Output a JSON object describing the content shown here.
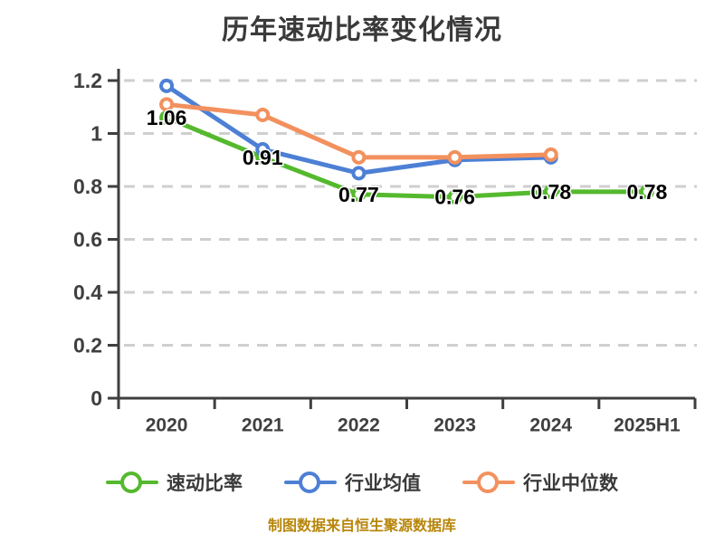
{
  "title": "历年速动比率变化情况",
  "footer": "制图数据来自恒生聚源数据库",
  "colors": {
    "title": "#3a3a3a",
    "axis": "#3f3f3f",
    "grid": "#cfcfcf",
    "point_label": "#000000",
    "footer": "#b8860b",
    "background": "#ffffff",
    "series_quick_ratio": "#55b92e",
    "series_industry_avg": "#4d80d5",
    "series_industry_median": "#f2915e"
  },
  "chart_data": {
    "type": "line",
    "title": "历年速动比率变化情况",
    "xlabel": "",
    "ylabel": "",
    "categories": [
      "2020",
      "2021",
      "2022",
      "2023",
      "2024",
      "2025H1"
    ],
    "series": [
      {
        "name": "速动比率",
        "color": "#55b92e",
        "values": [
          1.06,
          0.91,
          0.77,
          0.76,
          0.78,
          0.78
        ],
        "labels": [
          "1.06",
          "0.91",
          "0.77",
          "0.76",
          "0.78",
          "0.78"
        ]
      },
      {
        "name": "行业均值",
        "color": "#4d80d5",
        "values": [
          1.18,
          0.94,
          0.85,
          0.9,
          0.91,
          null
        ],
        "labels": null
      },
      {
        "name": "行业中位数",
        "color": "#f2915e",
        "values": [
          1.11,
          1.07,
          0.91,
          0.91,
          0.92,
          null
        ],
        "labels": null
      }
    ],
    "ylim": [
      0,
      1.2
    ],
    "yticks": [
      {
        "value": 1.2,
        "label": "1.2"
      },
      {
        "value": 1.0,
        "label": "1"
      },
      {
        "value": 0.8,
        "label": "0.8"
      },
      {
        "value": 0.6,
        "label": "0.6"
      },
      {
        "value": 0.4,
        "label": "0.4"
      },
      {
        "value": 0.2,
        "label": "0.2"
      },
      {
        "value": 0,
        "label": "0"
      }
    ],
    "grid": true,
    "grid_style": "dashed",
    "legend_position": "bottom",
    "marker": "open-circle"
  }
}
